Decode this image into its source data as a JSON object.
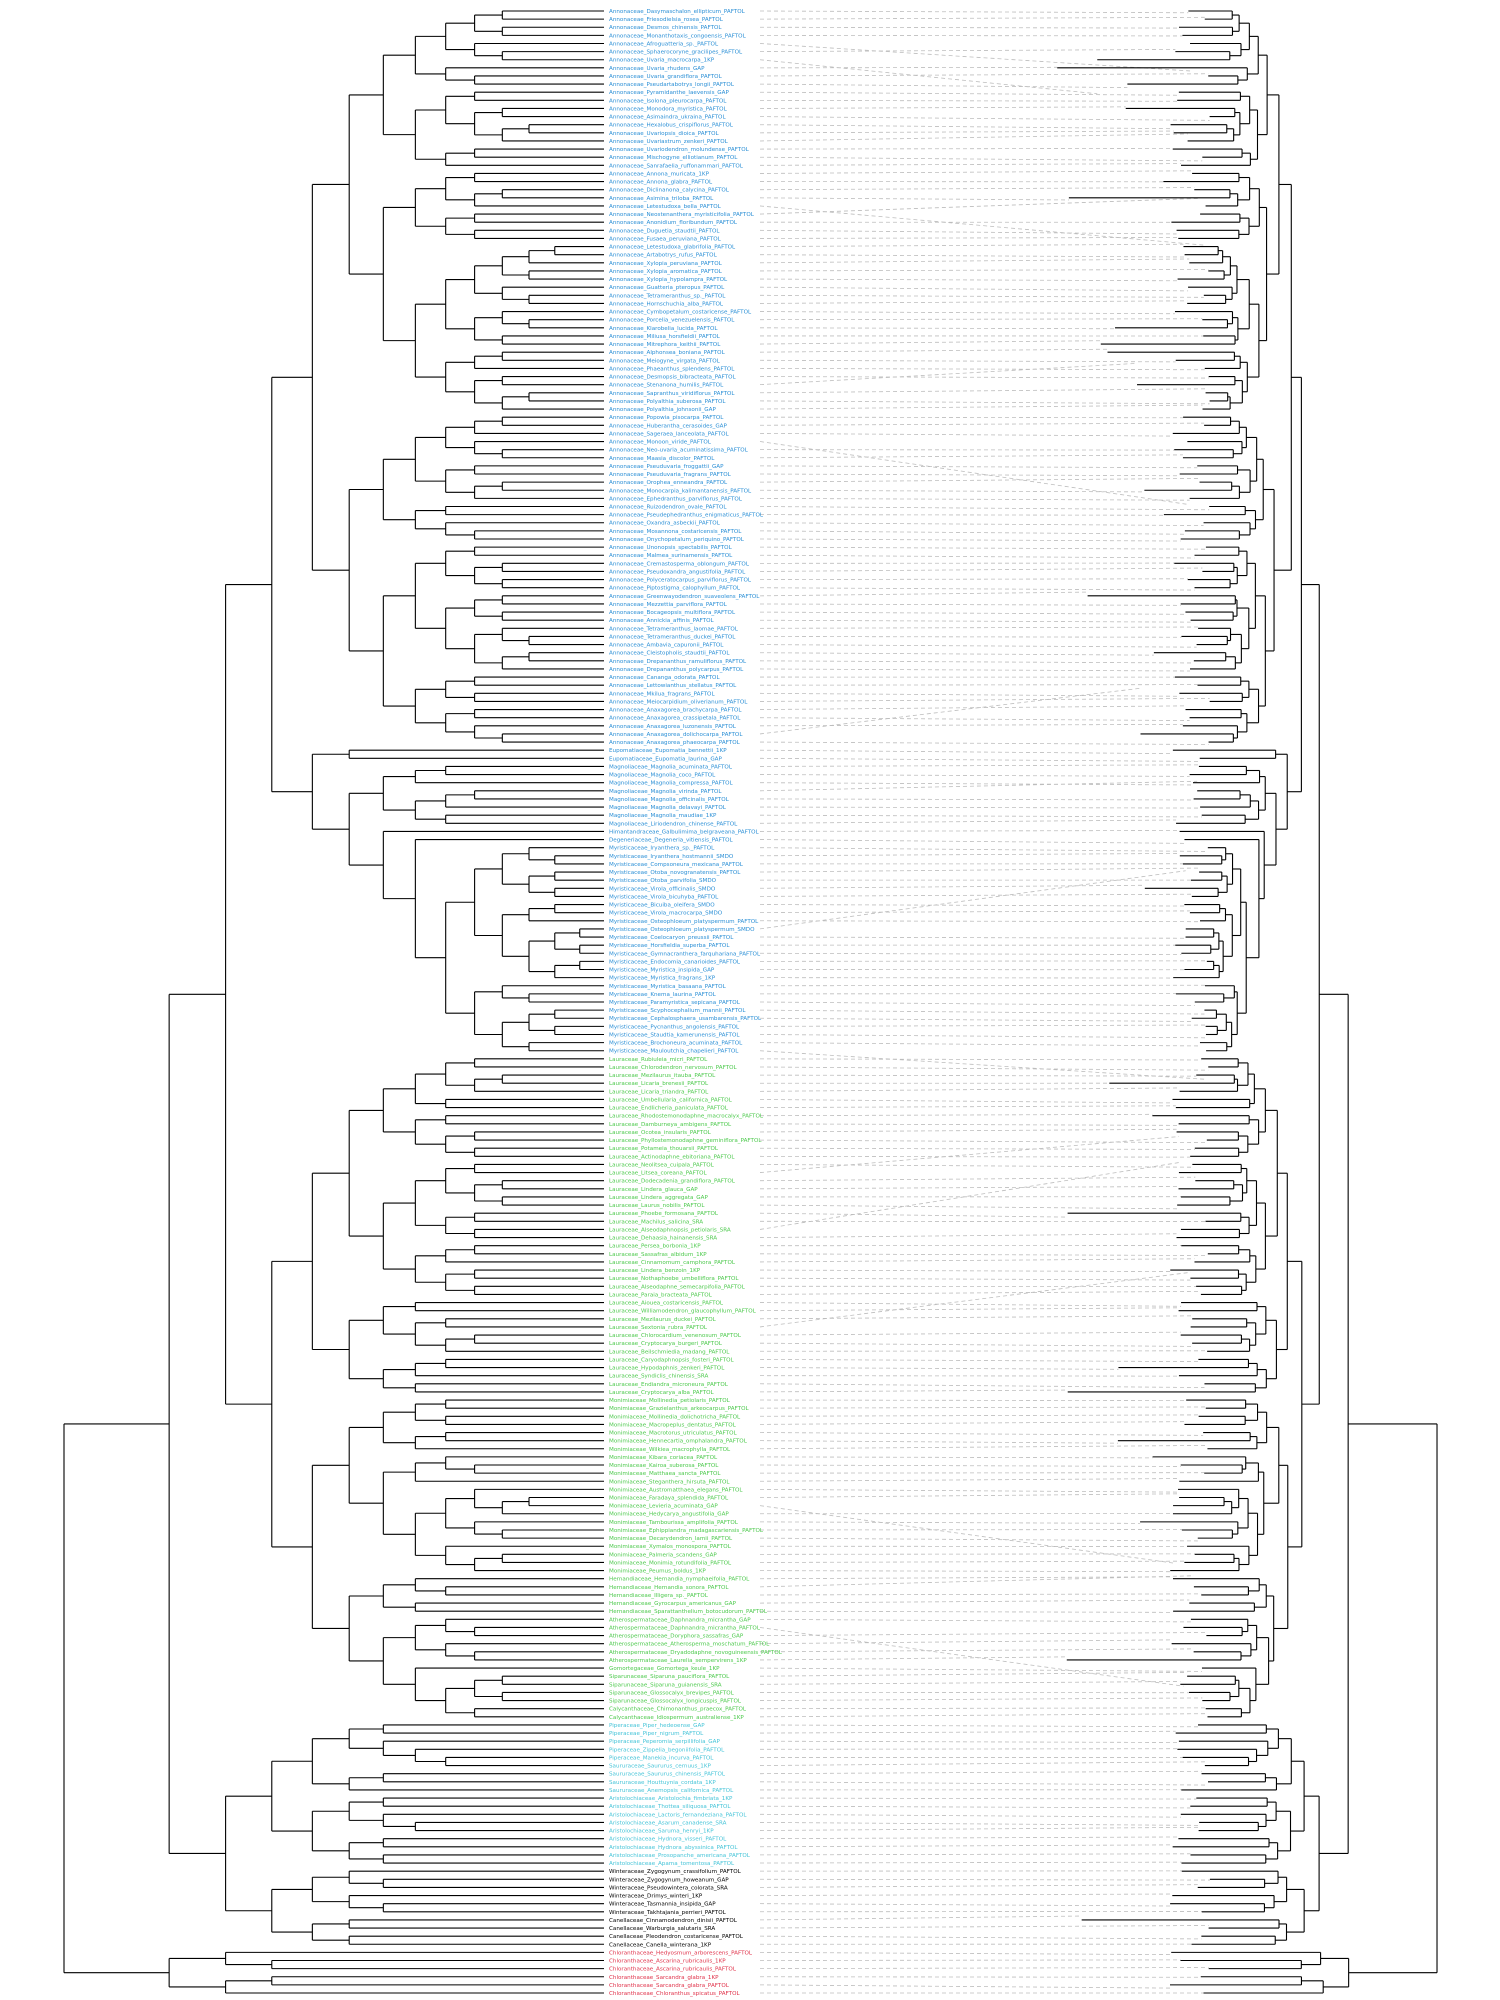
{
  "figure": {
    "kind": "tanglegram",
    "line_color": "#000000",
    "tangle_color": "#bdbdbd",
    "clades": [
      {
        "name": "Annonaceae",
        "color": "#2a8fd6",
        "count": 91,
        "labels": [
          "Annonaceae_Dasymaschalon_ellipticum_PAFTOL",
          "Annonaceae_Friesodielsia_rosea_PAFTOL",
          "Annonaceae_Desmos_chinensis_PAFTOL",
          "Annonaceae_Monanthotaxis_congoensis_PAFTOL",
          "Annonaceae_Afroguatteria_sp._PAFTOL",
          "Annonaceae_Sphaerocoryne_gracilipes_PAFTOL",
          "Annonaceae_Uvaria_macrocarpa_1KP",
          "Annonaceae_Uvaria_rhudens_GAP",
          "Annonaceae_Uvaria_grandiflora_PAFTOL",
          "Annonaceae_Pseudartabotrys_longii_PAFTOL",
          "Annonaceae_Pyramidanthe_laevensis_GAP",
          "Annonaceae_Isolona_pleurocarpa_PAFTOL",
          "Annonaceae_Monodora_myristica_PAFTOL",
          "Annonaceae_Asimaindra_ukraina_PAFTOL",
          "Annonaceae_Hexalobus_crispiflorus_PAFTOL",
          "Annonaceae_Uvariopsis_dioica_PAFTOL",
          "Annonaceae_Uvariastrum_zenkeri_PAFTOL",
          "Annonaceae_Uvariodendron_molundense_PAFTOL",
          "Annonaceae_Mischogyne_elliotianum_PAFTOL",
          "Annonaceae_Sanrafaelia_ruffonammari_PAFTOL",
          "Annonaceae_Annona_muricata_1KP",
          "Annonaceae_Annona_glabra_PAFTOL",
          "Annonaceae_Diclinanona_calycina_PAFTOL",
          "Annonaceae_Asimina_triloba_PAFTOL",
          "Annonaceae_Letestudoxa_bella_PAFTOL",
          "Annonaceae_Neostenanthera_myristicifolia_PAFTOL",
          "Annonaceae_Anonidium_floribundum_PAFTOL",
          "Annonaceae_Duguetia_staudtii_PAFTOL",
          "Annonaceae_Fusaea_peruviana_PAFTOL",
          "Annonaceae_Letestudoxa_glabrifolia_PAFTOL",
          "Annonaceae_Artabotrys_rufus_PAFTOL",
          "Annonaceae_Xylopia_peruviana_PAFTOL",
          "Annonaceae_Xylopia_aromatica_PAFTOL",
          "Annonaceae_Xylopia_hypolampra_PAFTOL",
          "Annonaceae_Guatteria_pteropus_PAFTOL",
          "Annonaceae_Tetrameranthus_sp._PAFTOL",
          "Annonaceae_Hornschuchia_alba_PAFTOL",
          "Annonaceae_Cymbopetalum_costaricense_PAFTOL",
          "Annonaceae_Porcelia_venezuelensis_PAFTOL",
          "Annonaceae_Klarobelia_lucida_PAFTOL",
          "Annonaceae_Miliusa_horsfieldii_PAFTOL",
          "Annonaceae_Mitrephora_keithii_PAFTOL",
          "Annonaceae_Alphonsea_boniana_PAFTOL",
          "Annonaceae_Meiogyne_virgata_PAFTOL",
          "Annonaceae_Phaeanthus_splendens_PAFTOL",
          "Annonaceae_Desmopsis_bibracteata_PAFTOL",
          "Annonaceae_Stenanona_humilis_PAFTOL",
          "Annonaceae_Sapranthus_viridiflorus_PAFTOL",
          "Annonaceae_Polyalthia_suberosa_PAFTOL",
          "Annonaceae_Polyalthia_johnsonii_GAP",
          "Annonaceae_Popowia_pisocarpa_PAFTOL",
          "Annonaceae_Huberantha_cerasoides_GAP",
          "Annonaceae_Sageraea_lanceolata_PAFTOL",
          "Annonaceae_Monoon_viride_PAFTOL",
          "Annonaceae_Neo-uvaria_acuminatissima_PAFTOL",
          "Annonaceae_Maasia_discolor_PAFTOL",
          "Annonaceae_Pseuduvaria_froggattii_GAP",
          "Annonaceae_Pseuduvaria_fragrans_PAFTOL",
          "Annonaceae_Orophea_enneandra_PAFTOL",
          "Annonaceae_Monocarpia_kalimantanensis_PAFTOL",
          "Annonaceae_Ephedranthus_parviflorus_PAFTOL",
          "Annonaceae_Ruizodendron_ovale_PAFTOL",
          "Annonaceae_Pseudephedranthus_enigmaticus_PAFTOL",
          "Annonaceae_Oxandra_asbeckii_PAFTOL",
          "Annonaceae_Mosannona_costaricensis_PAFTOL",
          "Annonaceae_Onychopetalum_periquino_PAFTOL",
          "Annonaceae_Unonopsis_spectabilis_PAFTOL",
          "Annonaceae_Malmea_surinamensis_PAFTOL",
          "Annonaceae_Cremastosperma_oblongum_PAFTOL",
          "Annonaceae_Pseudoxandra_angustifolia_PAFTOL",
          "Annonaceae_Polyceratocarpus_parviflorus_PAFTOL",
          "Annonaceae_Piptostigma_calophyllum_PAFTOL",
          "Annonaceae_Greenwayodendron_suaveolens_PAFTOL",
          "Annonaceae_Mezzettia_parviflora_PAFTOL",
          "Annonaceae_Bocageopsis_multiflora_PAFTOL",
          "Annonaceae_Annickia_affinis_PAFTOL",
          "Annonaceae_Tetrameranthus_laomae_PAFTOL",
          "Annonaceae_Tetrameranthus_duckei_PAFTOL",
          "Annonaceae_Ambavia_capuronii_PAFTOL",
          "Annonaceae_Cleistopholis_staudtii_PAFTOL",
          "Annonaceae_Drepananthus_ramuliflorus_PAFTOL",
          "Annonaceae_Drepananthus_polycarpus_PAFTOL",
          "Annonaceae_Cananga_odorata_PAFTOL",
          "Annonaceae_Lettowianthus_stellatus_PAFTOL",
          "Annonaceae_Mkilua_fragrans_PAFTOL",
          "Annonaceae_Meiocarpidium_oliverianum_PAFTOL",
          "Annonaceae_Anaxagorea_brachycarpa_PAFTOL",
          "Annonaceae_Anaxagorea_crassipetala_PAFTOL",
          "Annonaceae_Anaxagorea_luzonensis_PAFTOL",
          "Annonaceae_Anaxagorea_dolichocarpa_PAFTOL",
          "Annonaceae_Anaxagorea_phaeocarpa_PAFTOL"
        ]
      },
      {
        "name": "Eupomatiaceae",
        "color": "#2a8fd6",
        "count": 2,
        "labels": [
          "Eupomatiaceae_Eupomatia_bennettii_1KP",
          "Eupomatiaceae_Eupomatia_laurina_GAP"
        ]
      },
      {
        "name": "Magnoliaceae",
        "color": "#2a8fd6",
        "count": 8,
        "labels": [
          "Magnoliaceae_Magnolia_acuminata_PAFTOL",
          "Magnoliaceae_Magnolia_coco_PAFTOL",
          "Magnoliaceae_Magnolia_compressa_PAFTOL",
          "Magnoliaceae_Magnolia_virinda_PAFTOL",
          "Magnoliaceae_Magnolia_officinalis_PAFTOL",
          "Magnoliaceae_Magnolia_delavayi_PAFTOL",
          "Magnoliaceae_Magnolia_maudiae_1KP",
          "Magnoliaceae_Liriodendron_chinense_PAFTOL"
        ]
      },
      {
        "name": "Himantandraceae",
        "color": "#2a8fd6",
        "count": 1,
        "labels": [
          "Himantandraceae_Galbulimima_belgraveana_PAFTOL"
        ]
      },
      {
        "name": "Degeneriaceae",
        "color": "#2a8fd6",
        "count": 1,
        "labels": [
          "Degeneriaceae_Degeneria_vitiensis_PAFTOL"
        ]
      },
      {
        "name": "Myristicaceae",
        "color": "#2a8fd6",
        "count": 26,
        "labels": [
          "Myristicaceae_Iryanthera_sp._PAFTOL",
          "Myristicaceae_Iryanthera_hostmannii_SMDO",
          "Myristicaceae_Compsoneura_mexicana_PAFTOL",
          "Myristicaceae_Otoba_novogranatensis_PAFTOL",
          "Myristicaceae_Otoba_parvifolia_SMDO",
          "Myristicaceae_Virola_officinalis_SMDO",
          "Myristicaceae_Virola_bicuhyba_PAFTOL",
          "Myristicaceae_Bicuiba_oleifera_SMDO",
          "Myristicaceae_Virola_macrocarpa_SMDO",
          "Myristicaceae_Osteophloeum_platyspermum_PAFTOL",
          "Myristicaceae_Osteophloeum_platyspermum_SMDO",
          "Myristicaceae_Coelocaryon_preussii_PAFTOL",
          "Myristicaceae_Horsfieldia_superba_PAFTOL",
          "Myristicaceae_Gymnacranthera_farquhariana_PAFTOL",
          "Myristicaceae_Endocomia_canarioides_PAFTOL",
          "Myristicaceae_Myristica_insipida_GAP",
          "Myristicaceae_Myristica_fragrans_1KP",
          "Myristicaceae_Myristica_basaana_PAFTOL",
          "Myristicaceae_Knema_laurina_PAFTOL",
          "Myristicaceae_Paramyristica_sepicana_PAFTOL",
          "Myristicaceae_Scyphocephalium_mannii_PAFTOL",
          "Myristicaceae_Cephalosphaera_usambarensis_PAFTOL",
          "Myristicaceae_Pycnanthus_angolensis_PAFTOL",
          "Myristicaceae_Staudtia_kamerunensis_PAFTOL",
          "Myristicaceae_Brochoneura_acuminata_PAFTOL",
          "Myristicaceae_Mauloutchia_chapelieri_PAFTOL"
        ]
      },
      {
        "name": "Lauraceae",
        "color": "#4cc94c",
        "count": 42,
        "labels": [
          "Lauraceae_Rubiuleia_micri_PAFTOL",
          "Lauraceae_Chlorodendron_nervosum_PAFTOL",
          "Lauraceae_Mezilaurus_itauba_PAFTOL",
          "Lauraceae_Licaria_brenesii_PAFTOL",
          "Lauraceae_Licaria_triandra_PAFTOL",
          "Lauraceae_Umbellularia_californica_PAFTOL",
          "Lauraceae_Endlicheria_paniculata_PAFTOL",
          "Lauraceae_Rhodostemonodaphne_macrocalyx_PAFTOL",
          "Lauraceae_Damburneya_ambigens_PAFTOL",
          "Lauraceae_Ocotea_insularis_PAFTOL",
          "Lauraceae_Phyllostemonodaphne_geminiflora_PAFTOL",
          "Lauraceae_Potameia_thouarsii_PAFTOL",
          "Lauraceae_Actinodaphne_ebitoriana_PAFTOL",
          "Lauraceae_Neolitsea_cuipala_PAFTOL",
          "Lauraceae_Litsea_coreana_PAFTOL",
          "Lauraceae_Dodecadenia_grandiflora_PAFTOL",
          "Lauraceae_Lindera_glauca_GAP",
          "Lauraceae_Lindera_aggregata_GAP",
          "Lauraceae_Laurus_nobilis_PAFTOL",
          "Lauraceae_Phoebe_formosana_PAFTOL",
          "Lauraceae_Machilus_salicina_SRA",
          "Lauraceae_Alseodaphnopsis_petiolaris_SRA",
          "Lauraceae_Dehaasia_hainanensis_SRA",
          "Lauraceae_Persea_borbonia_1KP",
          "Lauraceae_Sassafras_albidum_1KP",
          "Lauraceae_Cinnamomum_camphora_PAFTOL",
          "Lauraceae_Lindera_benzoin_1KP",
          "Lauraceae_Nothaphoebe_umbelliflora_PAFTOL",
          "Lauraceae_Alseodaphne_semecarpifolia_PAFTOL",
          "Lauraceae_Paraia_bracteata_PAFTOL",
          "Lauraceae_Aiouea_costaricensis_PAFTOL",
          "Lauraceae_Williamodendron_glaucophyllum_PAFTOL",
          "Lauraceae_Mezilaurus_duckei_PAFTOL",
          "Lauraceae_Sextonia_rubra_PAFTOL",
          "Lauraceae_Chlorocardium_venenosum_PAFTOL",
          "Lauraceae_Cryptocarya_burgeri_PAFTOL",
          "Lauraceae_Beilschmiedia_madang_PAFTOL",
          "Lauraceae_Caryodaphnopsis_fosteri_PAFTOL",
          "Lauraceae_Hypodaphnis_zenkeri_PAFTOL",
          "Lauraceae_Syndiclis_chinensis_SRA",
          "Lauraceae_Endiandra_microneura_PAFTOL",
          "Lauraceae_Cryptocarya_alba_PAFTOL"
        ]
      },
      {
        "name": "Monimiaceae",
        "color": "#4cc94c",
        "count": 22,
        "labels": [
          "Monimiaceae_Mollinedia_petiolaris_PAFTOL",
          "Monimiaceae_Grazielanthus_arkeocarpus_PAFTOL",
          "Monimiaceae_Mollinedia_dolichotricha_PAFTOL",
          "Monimiaceae_Macropeplus_dentatus_PAFTOL",
          "Monimiaceae_Macrotorus_utriculatus_PAFTOL",
          "Monimiaceae_Hennecartia_omphalandra_PAFTOL",
          "Monimiaceae_Wilkiea_macrophylla_PAFTOL",
          "Monimiaceae_Kibara_coriacea_PAFTOL",
          "Monimiaceae_Kairoa_suberosa_PAFTOL",
          "Monimiaceae_Matthaea_sancta_PAFTOL",
          "Monimiaceae_Steganthera_hirsuta_PAFTOL",
          "Monimiaceae_Austromatthaea_elegans_PAFTOL",
          "Monimiaceae_Faradaya_splendida_PAFTOL",
          "Monimiaceae_Levieria_acuminata_GAP",
          "Monimiaceae_Hedycarya_angustifolia_GAP",
          "Monimiaceae_Tambourissa_amplifolia_PAFTOL",
          "Monimiaceae_Ephippiandra_madagascariensis_PAFTOL",
          "Monimiaceae_Decarydendron_lamii_PAFTOL",
          "Monimiaceae_Xymalos_monospora_PAFTOL",
          "Monimiaceae_Palmeria_scandens_GAP",
          "Monimiaceae_Monimia_rotundifolia_PAFTOL",
          "Monimiaceae_Peumus_boldus_1KP"
        ]
      },
      {
        "name": "Hernandiaceae",
        "color": "#4cc94c",
        "count": 5,
        "labels": [
          "Hernandiaceae_Hernandia_nymphaeifolia_PAFTOL",
          "Hernandiaceae_Hernandia_sonora_PAFTOL",
          "Hernandiaceae_Illigera_sp._PAFTOL",
          "Hernandiaceae_Gyrocarpus_americanus_GAP",
          "Hernandiaceae_Sparattanthelium_botocudorum_PAFTOL"
        ]
      },
      {
        "name": "Atherospermataceae",
        "color": "#4cc94c",
        "count": 6,
        "labels": [
          "Atherospermataceae_Daphnandra_micrantha_GAP",
          "Atherospermataceae_Daphnandra_micrantha_PAFTOL",
          "Atherospermataceae_Doryphora_sassafras_GAP",
          "Atherospermataceae_Atherosperma_moschatum_PAFTOL",
          "Atherospermataceae_Dryadodaphne_novoguineensis_PAFTOL",
          "Atherospermataceae_Laurelia_sempervirens_1KP"
        ]
      },
      {
        "name": "Gomortegaceae",
        "color": "#4cc94c",
        "count": 1,
        "labels": [
          "Gomortegaceae_Gomortega_keule_1KP"
        ]
      },
      {
        "name": "Siparunaceae",
        "color": "#4cc94c",
        "count": 4,
        "labels": [
          "Siparunaceae_Siparuna_pauciflora_PAFTOL",
          "Siparunaceae_Siparuna_guianensis_SRA",
          "Siparunaceae_Glossocalyx_brevipes_PAFTOL",
          "Siparunaceae_Glossocalyx_longicuspis_PAFTOL"
        ]
      },
      {
        "name": "Calycanthaceae",
        "color": "#4cc94c",
        "count": 2,
        "labels": [
          "Calycanthaceae_Chimonanthus_praecox_PAFTOL",
          "Calycanthaceae_Idiospermum_australiense_1KP"
        ]
      },
      {
        "name": "Piperaceae",
        "color": "#45c4d8",
        "count": 9,
        "labels": [
          "Piperaceae_Piper_hedeoense_GAP",
          "Piperaceae_Piper_nigrum_PAFTOL",
          "Piperaceae_Peperomia_serpillifolia_GAP",
          "Piperaceae_Zippelia_begoniifolia_PAFTOL",
          "Piperaceae_Manekia_incurva_PAFTOL",
          "Saururaceae_Saururus_cernuus_1KP",
          "Saururaceae_Saururus_chinensis_PAFTOL",
          "Saururaceae_Houttuynia_cordata_1KP",
          "Saururaceae_Anemopsis_californica_PAFTOL"
        ]
      },
      {
        "name": "Aristolochiaceae",
        "color": "#45c4d8",
        "count": 9,
        "labels": [
          "Aristolochiaceae_Aristolochia_fimbriata_1KP",
          "Aristolochiaceae_Thottea_siliquosa_PAFTOL",
          "Aristolochiaceae_Lactoris_fernandeziana_PAFTOL",
          "Aristolochiaceae_Asarum_canadense_SRA",
          "Aristolochiaceae_Saruma_henryi_1KP",
          "Aristolochiaceae_Hydnora_visseri_PAFTOL",
          "Aristolochiaceae_Hydnora_abyssinica_PAFTOL",
          "Aristolochiaceae_Prosopanche_americana_PAFTOL",
          "Aristolochiaceae_Apama_tomentosa_PAFTOL"
        ]
      },
      {
        "name": "Winteraceae",
        "color": "#000000",
        "count": 6,
        "labels": [
          "Winteraceae_Zygogynum_crassifolium_PAFTOL",
          "Winteraceae_Zygogynum_howeanum_GAP",
          "Winteraceae_Pseudowintera_colorata_SRA",
          "Winteraceae_Drimys_winteri_1KP",
          "Winteraceae_Tasmannia_insipida_GAP",
          "Winteraceae_Takhtajania_perrieri_PAFTOL"
        ]
      },
      {
        "name": "Canellaceae",
        "color": "#000000",
        "count": 4,
        "labels": [
          "Canellaceae_Cinnamodendron_dinisii_PAFTOL",
          "Canellaceae_Warburgia_salutaris_SRA",
          "Canellaceae_Pleodendron_costaricense_PAFTOL",
          "Canellaceae_Canella_winterana_1KP"
        ]
      },
      {
        "name": "Chloranthaceae",
        "color": "#e0324a",
        "count": 6,
        "labels": [
          "Chloranthaceae_Hedyosmum_arborescens_PAFTOL",
          "Chloranthaceae_Ascarina_rubricaulis_1KP",
          "Chloranthaceae_Ascarina_rubricaulis_PAFTOL",
          "Chloranthaceae_Sarcandra_glabra_1KP",
          "Chloranthaceae_Sarcandra_glabra_PAFTOL",
          "Chloranthaceae_Chloranthus_spicatus_PAFTOL"
        ]
      }
    ]
  }
}
